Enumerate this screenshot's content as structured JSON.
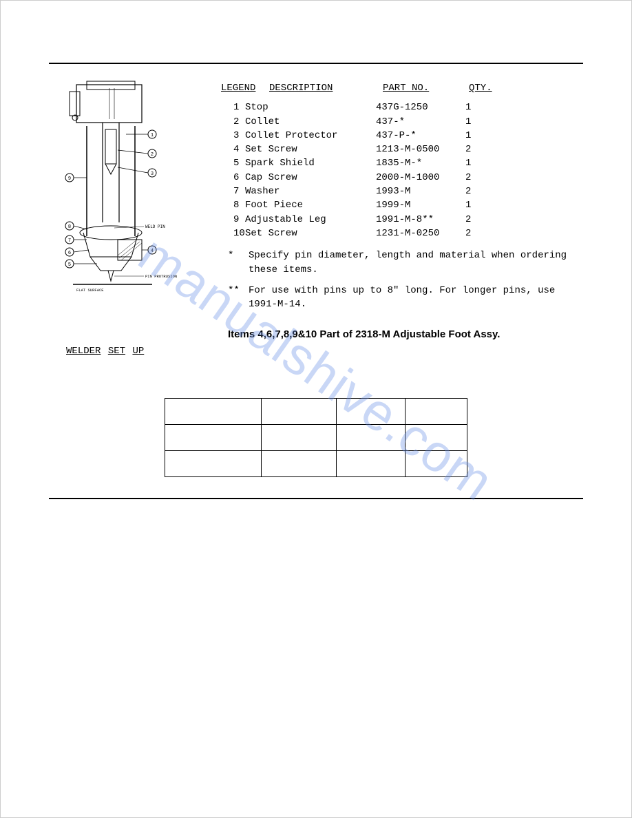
{
  "watermark": "manualshive.com",
  "legend": {
    "headers": {
      "legend": "LEGEND",
      "description": "DESCRIPTION",
      "part_no": "PART NO.",
      "qty": "QTY."
    },
    "rows": [
      {
        "n": "1",
        "desc": "Stop",
        "part": "437G-1250",
        "qty": "1"
      },
      {
        "n": "2",
        "desc": "Collet",
        "part": "437-*",
        "qty": "1"
      },
      {
        "n": "3",
        "desc": "Collet Protector",
        "part": "437-P-*",
        "qty": "1"
      },
      {
        "n": "4",
        "desc": "Set Screw",
        "part": "1213-M-0500",
        "qty": "2"
      },
      {
        "n": "5",
        "desc": "Spark Shield",
        "part": "1835-M-*",
        "qty": "1"
      },
      {
        "n": "6",
        "desc": "Cap Screw",
        "part": "2000-M-1000",
        "qty": "2"
      },
      {
        "n": "7",
        "desc": "Washer",
        "part": "1993-M",
        "qty": "2"
      },
      {
        "n": "8",
        "desc": "Foot Piece",
        "part": "1999-M",
        "qty": "1"
      },
      {
        "n": "9",
        "desc": "Adjustable Leg",
        "part": "1991-M-8**",
        "qty": "2"
      },
      {
        "n": "10",
        "desc": "Set Screw",
        "part": "1231-M-0250",
        "qty": "2"
      }
    ],
    "note1_marker": "*",
    "note1": "Specify pin diameter, length and material when ordering these items.",
    "note2_marker": "**",
    "note2": "For use with pins up to 8\" long. For longer pins, use 1991-M-14."
  },
  "assy_note": "Items 4,6,7,8,9&10 Part of 2318-M Adjustable Foot Assy.",
  "welder_setup": {
    "w1": "WELDER",
    "w2": "SET",
    "w3": "UP"
  },
  "diagram_labels": {
    "weld_pin": "WELD PIN",
    "pin_protrusion": "PIN PROTRUSION",
    "flat_surface": "FLAT SURFACE"
  },
  "diagram_callouts": [
    "1",
    "2",
    "3",
    "4",
    "5",
    "6",
    "7",
    "8",
    "9"
  ],
  "settings_table": {
    "rows": [
      [
        "",
        "",
        "",
        ""
      ],
      [
        "",
        "",
        "",
        ""
      ],
      [
        "",
        "",
        "",
        ""
      ]
    ]
  },
  "section_title": "",
  "subhead": "",
  "colors": {
    "rule": "#000000",
    "watermark": "rgba(100,140,230,0.35)",
    "bg": "#ffffff"
  }
}
